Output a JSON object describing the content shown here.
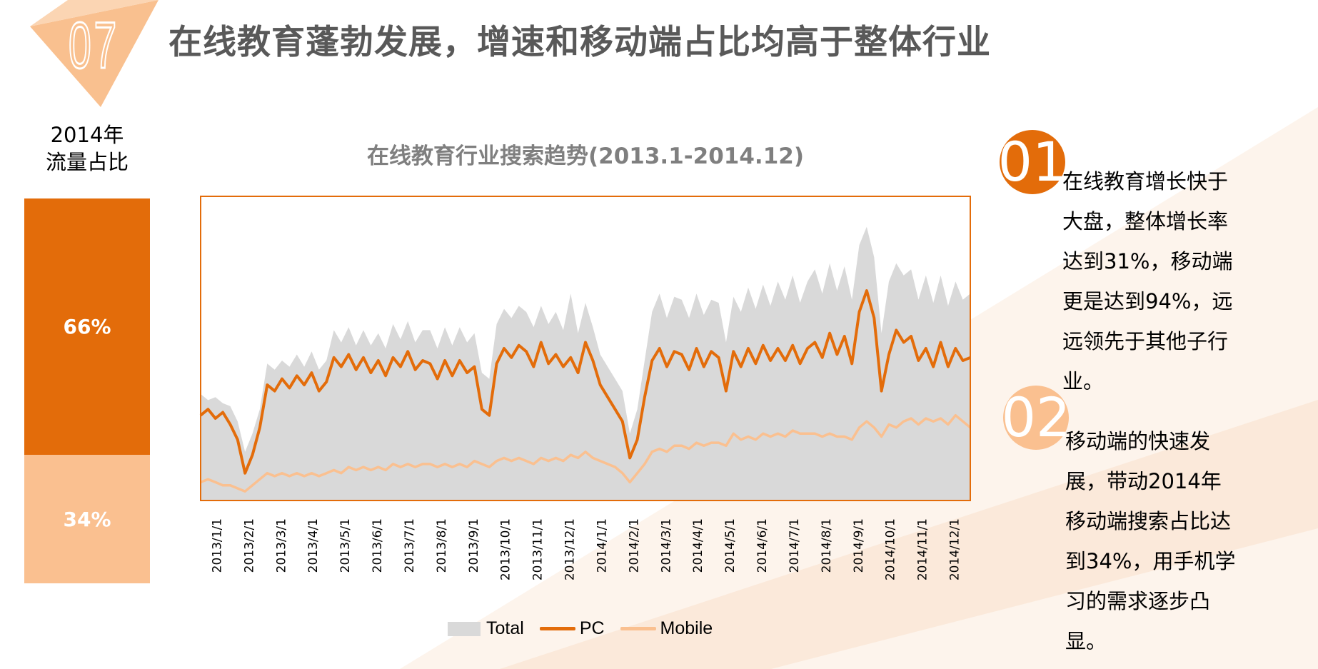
{
  "header": {
    "badge_number": "07",
    "title": "在线教育蓬勃发展，增速和移动端占比均高于整体行业"
  },
  "share": {
    "label_line1": "2014年",
    "label_line2": "流量占比",
    "pc_percent": "66%",
    "mobile_percent": "34%",
    "pc_value": 66,
    "mobile_value": 34
  },
  "colors": {
    "pc": "#e36c0a",
    "mobile": "#fac090",
    "total": "#d9d9d9",
    "title": "#595959"
  },
  "chart_data": {
    "type": "area",
    "title": "在线教育行业搜索趋势(2013.1-2014.12)",
    "xlabel": "",
    "ylabel": "",
    "ylim": [
      0,
      100
    ],
    "x_tick_labels": [
      "2013/1/1",
      "2013/2/1",
      "2013/3/1",
      "2013/4/1",
      "2013/5/1",
      "2013/6/1",
      "2013/7/1",
      "2013/8/1",
      "2013/9/1",
      "2013/10/1",
      "2013/11/1",
      "2013/12/1",
      "2014/1/1",
      "2014/2/1",
      "2014/3/1",
      "2014/4/1",
      "2014/5/1",
      "2014/6/1",
      "2014/7/1",
      "2014/8/1",
      "2014/9/1",
      "2014/10/1",
      "2014/11/1",
      "2014/12/1"
    ],
    "x_unit": "week index (approx. weekly samples, 2013-01 to 2014-12)",
    "legend": [
      "Total",
      "PC",
      "Mobile"
    ],
    "legend_position": "bottom",
    "series": [
      {
        "name": "Total",
        "type": "area",
        "values": [
          35,
          33,
          34,
          32,
          31,
          26,
          16,
          22,
          30,
          45,
          43,
          46,
          44,
          48,
          44,
          49,
          43,
          46,
          56,
          52,
          57,
          51,
          56,
          51,
          55,
          50,
          58,
          53,
          59,
          52,
          56,
          56,
          50,
          57,
          51,
          57,
          52,
          55,
          42,
          40,
          58,
          63,
          60,
          64,
          62,
          57,
          64,
          58,
          62,
          56,
          68,
          55,
          65,
          57,
          48,
          44,
          40,
          36,
          22,
          30,
          46,
          62,
          68,
          60,
          67,
          66,
          60,
          68,
          61,
          66,
          65,
          52,
          67,
          62,
          70,
          63,
          71,
          64,
          72,
          66,
          74,
          65,
          72,
          76,
          68,
          78,
          69,
          77,
          66,
          84,
          90,
          80,
          55,
          72,
          78,
          74,
          76,
          66,
          74,
          65,
          74,
          64,
          72,
          66,
          68
        ]
      },
      {
        "name": "PC",
        "type": "line",
        "values": [
          28,
          30,
          27,
          29,
          25,
          20,
          9,
          15,
          24,
          38,
          36,
          40,
          37,
          41,
          38,
          42,
          36,
          39,
          47,
          44,
          48,
          43,
          47,
          42,
          46,
          41,
          47,
          44,
          49,
          43,
          46,
          45,
          40,
          46,
          41,
          46,
          42,
          44,
          30,
          28,
          45,
          50,
          47,
          51,
          49,
          44,
          52,
          45,
          48,
          44,
          47,
          42,
          52,
          46,
          38,
          34,
          30,
          26,
          14,
          20,
          34,
          46,
          50,
          44,
          49,
          48,
          43,
          50,
          44,
          49,
          47,
          36,
          49,
          44,
          50,
          45,
          51,
          46,
          50,
          46,
          51,
          45,
          50,
          52,
          47,
          55,
          48,
          54,
          45,
          62,
          69,
          60,
          36,
          48,
          56,
          52,
          54,
          46,
          50,
          44,
          52,
          44,
          50,
          46,
          47
        ]
      },
      {
        "name": "Mobile",
        "type": "line",
        "values": [
          6,
          7,
          6,
          5,
          5,
          4,
          3,
          5,
          7,
          9,
          8,
          9,
          8,
          9,
          8,
          9,
          8,
          9,
          10,
          9,
          11,
          10,
          11,
          10,
          11,
          10,
          12,
          11,
          12,
          11,
          12,
          12,
          11,
          12,
          11,
          12,
          11,
          13,
          12,
          11,
          13,
          14,
          13,
          14,
          13,
          12,
          14,
          13,
          14,
          13,
          15,
          14,
          16,
          14,
          13,
          12,
          11,
          9,
          6,
          9,
          12,
          16,
          17,
          16,
          18,
          18,
          17,
          19,
          18,
          19,
          19,
          18,
          22,
          20,
          21,
          20,
          22,
          21,
          22,
          21,
          23,
          22,
          22,
          22,
          21,
          22,
          21,
          21,
          20,
          24,
          26,
          24,
          21,
          25,
          24,
          26,
          27,
          25,
          27,
          26,
          27,
          25,
          28,
          26,
          24
        ]
      }
    ]
  },
  "insights": [
    {
      "number": "01",
      "lines": [
        "在线教育增长快于",
        "大盘，整体增长率",
        "达到31%，移动端",
        "更是达到94%，远",
        "远领先于其他子行",
        "业。"
      ]
    },
    {
      "number": "02",
      "lines": [
        "移动端的快速发",
        "展，带动2014年",
        "移动端搜索占比达",
        "到34%，用手机学",
        "习的需求逐步凸",
        "显。"
      ]
    }
  ]
}
